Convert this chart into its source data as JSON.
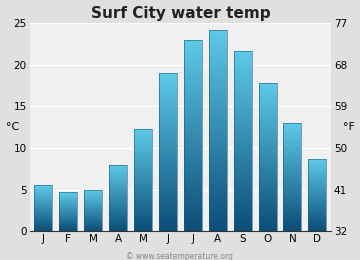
{
  "title": "Surf City water temp",
  "months": [
    "J",
    "F",
    "M",
    "A",
    "M",
    "J",
    "J",
    "A",
    "S",
    "O",
    "N",
    "D"
  ],
  "values_c": [
    5.5,
    4.7,
    5.0,
    8.0,
    12.3,
    19.0,
    23.0,
    24.2,
    21.7,
    17.8,
    13.0,
    8.7
  ],
  "ylim_c": [
    0,
    25
  ],
  "yticks_c": [
    0,
    5,
    10,
    15,
    20,
    25
  ],
  "yticks_f": [
    32,
    41,
    50,
    59,
    68,
    77
  ],
  "ylabel_left": "°C",
  "ylabel_right": "°F",
  "bar_color_top": "#5ecbe8",
  "bar_color_bottom": "#0b4d78",
  "bg_color": "#e0e0e0",
  "plot_bg_color": "#f0f0f0",
  "grid_color": "#ffffff",
  "title_fontsize": 11,
  "tick_fontsize": 7.5,
  "label_fontsize": 8,
  "watermark": "© www.seatemperature.org"
}
